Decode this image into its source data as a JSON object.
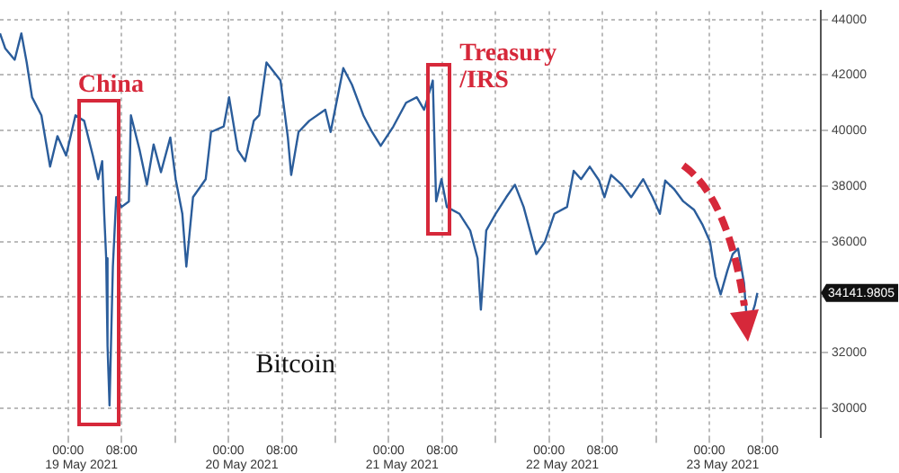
{
  "chart_data": {
    "type": "line",
    "x": [
      "2021-05-18T13:48",
      "2021-05-18T14:36",
      "2021-05-18T16:00",
      "2021-05-18T17:00",
      "2021-05-18T17:48",
      "2021-05-18T18:36",
      "2021-05-18T20:00",
      "2021-05-18T21:18",
      "2021-05-18T22:24",
      "2021-05-18T23:42",
      "2021-05-19T01:06",
      "2021-05-19T02:24",
      "2021-05-19T03:42",
      "2021-05-19T04:30",
      "2021-05-19T05:06",
      "2021-05-19T05:24",
      "2021-05-19T05:42",
      "2021-05-19T05:54",
      "2021-05-19T06:12",
      "2021-05-19T06:42",
      "2021-05-19T07:12",
      "2021-05-19T08:00",
      "2021-05-19T09:06",
      "2021-05-19T09:24",
      "2021-05-19T10:42",
      "2021-05-19T11:48",
      "2021-05-19T12:48",
      "2021-05-19T13:54",
      "2021-05-19T15:18",
      "2021-05-19T16:06",
      "2021-05-19T17:06",
      "2021-05-19T17:42",
      "2021-05-19T18:42",
      "2021-05-19T20:36",
      "2021-05-19T21:24",
      "2021-05-19T23:18",
      "2021-05-20T00:06",
      "2021-05-20T01:24",
      "2021-05-20T02:30",
      "2021-05-20T03:48",
      "2021-05-20T04:36",
      "2021-05-20T05:42",
      "2021-05-20T07:48",
      "2021-05-20T08:54",
      "2021-05-20T09:24",
      "2021-05-20T10:30",
      "2021-05-20T12:06",
      "2021-05-20T14:30",
      "2021-05-20T15:18",
      "2021-05-20T17:12",
      "2021-05-20T18:30",
      "2021-05-20T20:12",
      "2021-05-20T21:30",
      "2021-05-20T22:48",
      "2021-05-21T00:42",
      "2021-05-21T02:36",
      "2021-05-21T04:12",
      "2021-05-21T05:18",
      "2021-05-21T06:36",
      "2021-05-21T07:06",
      "2021-05-21T07:54",
      "2021-05-21T08:42",
      "2021-05-21T10:36",
      "2021-05-21T12:12",
      "2021-05-21T13:18",
      "2021-05-21T13:48",
      "2021-05-21T14:36",
      "2021-05-21T16:00",
      "2021-05-21T17:36",
      "2021-05-21T18:54",
      "2021-05-21T20:12",
      "2021-05-21T22:06",
      "2021-05-21T23:24",
      "2021-05-22T00:48",
      "2021-05-22T02:42",
      "2021-05-22T03:42",
      "2021-05-22T04:48",
      "2021-05-22T06:06",
      "2021-05-22T07:30",
      "2021-05-22T08:18",
      "2021-05-22T09:18",
      "2021-05-22T10:54",
      "2021-05-22T12:18",
      "2021-05-22T14:06",
      "2021-05-22T15:30",
      "2021-05-22T16:36",
      "2021-05-22T17:24",
      "2021-05-22T18:42",
      "2021-05-22T20:06",
      "2021-05-22T21:42",
      "2021-05-22T23:00",
      "2021-05-23T00:06",
      "2021-05-23T00:54",
      "2021-05-23T01:42",
      "2021-05-23T02:42",
      "2021-05-23T03:30",
      "2021-05-23T04:18",
      "2021-05-23T05:12",
      "2021-05-23T05:42",
      "2021-05-23T06:48",
      "2021-05-23T07:12"
    ],
    "series": [
      {
        "color": "#2b5d9b",
        "values": [
          43500,
          42950,
          42550,
          43500,
          42450,
          41200,
          40550,
          38700,
          39800,
          39100,
          40550,
          40350,
          39100,
          38250,
          38900,
          37000,
          35400,
          32250,
          30100,
          35100,
          37600,
          37250,
          37450,
          40550,
          39300,
          38050,
          39500,
          38500,
          39750,
          38250,
          37000,
          35100,
          37600,
          38250,
          39950,
          40150,
          41200,
          39300,
          38900,
          40350,
          40550,
          42450,
          41800,
          39750,
          38400,
          39950,
          40350,
          40750,
          39950,
          42250,
          41650,
          40550,
          39950,
          39450,
          40150,
          41000,
          41200,
          40750,
          41800,
          37450,
          38250,
          37250,
          37000,
          36400,
          35400,
          33550,
          36400,
          37000,
          37600,
          38050,
          37250,
          35550,
          36000,
          37000,
          37250,
          38550,
          38250,
          38700,
          38200,
          37600,
          38400,
          38050,
          37600,
          38250,
          37600,
          37000,
          38200,
          37900,
          37450,
          37150,
          36600,
          36000,
          34750,
          34100,
          34950,
          35550,
          35750,
          34500,
          32900,
          33700,
          34150
        ]
      }
    ],
    "xlim": [
      "2021-05-18T13:48",
      "2021-05-23T16:42"
    ],
    "xticks": [
      {
        "value": "2021-05-19T00:00",
        "label": "00:00"
      },
      {
        "value": "2021-05-19T08:00",
        "label": "08:00"
      },
      {
        "value": "2021-05-19T16:00",
        "label": null
      },
      {
        "value": "2021-05-20T00:00",
        "label": "00:00"
      },
      {
        "value": "2021-05-20T08:00",
        "label": "08:00"
      },
      {
        "value": "2021-05-20T16:00",
        "label": null
      },
      {
        "value": "2021-05-21T00:00",
        "label": "00:00"
      },
      {
        "value": "2021-05-21T08:00",
        "label": "08:00"
      },
      {
        "value": "2021-05-21T16:00",
        "label": null
      },
      {
        "value": "2021-05-22T00:00",
        "label": "00:00"
      },
      {
        "value": "2021-05-22T08:00",
        "label": "08:00"
      },
      {
        "value": "2021-05-22T16:00",
        "label": null
      },
      {
        "value": "2021-05-23T00:00",
        "label": "00:00"
      },
      {
        "value": "2021-05-23T08:00",
        "label": "08:00"
      }
    ],
    "x2lim": [
      "2021-05-18T13:48",
      "2021-05-23T16:42"
    ],
    "x2ticks": [
      {
        "value": "2021-05-19T02:00",
        "label": "19 May 2021"
      },
      {
        "value": "2021-05-20T02:00",
        "label": "20 May 2021"
      },
      {
        "value": "2021-05-21T02:00",
        "label": "21 May 2021"
      },
      {
        "value": "2021-05-22T02:00",
        "label": "22 May 2021"
      },
      {
        "value": "2021-05-23T02:00",
        "label": "23 May 2021"
      }
    ],
    "ylim": [
      28950,
      44300
    ],
    "yticks": [
      30000,
      32000,
      {
        "value": 34000,
        "label": null
      },
      36000,
      38000,
      40000,
      42000,
      44000
    ],
    "grid": true,
    "annotations": [
      "China",
      "Treasury /IRS",
      "Bitcoin",
      "34141.9805"
    ]
  }
}
